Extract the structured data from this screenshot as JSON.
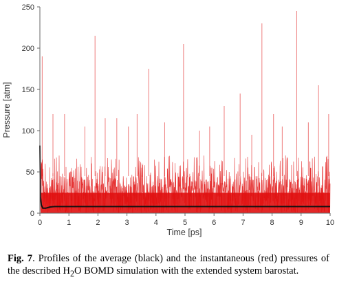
{
  "chart_data": {
    "type": "line",
    "title": "",
    "xlabel": "Time [ps]",
    "ylabel": "Pressure [atm]",
    "xlim": [
      0,
      10
    ],
    "ylim": [
      0,
      250
    ],
    "xticks": [
      "0",
      "1",
      "2",
      "3",
      "4",
      "5",
      "6",
      "7",
      "8",
      "9",
      "10"
    ],
    "yticks": [
      "0",
      "50",
      "100",
      "150",
      "200",
      "250"
    ],
    "grid": false,
    "legend": "none",
    "series": [
      {
        "color": "#e01010",
        "description_level": "instantaneous",
        "band": [
          0,
          45
        ],
        "typical_peaks": 70,
        "spikes": [
          {
            "x": 0.08,
            "y": 190
          },
          {
            "x": 0.45,
            "y": 120
          },
          {
            "x": 0.85,
            "y": 120
          },
          {
            "x": 1.55,
            "y": 105
          },
          {
            "x": 1.9,
            "y": 215
          },
          {
            "x": 2.25,
            "y": 115
          },
          {
            "x": 2.65,
            "y": 115
          },
          {
            "x": 3.05,
            "y": 105
          },
          {
            "x": 3.35,
            "y": 120
          },
          {
            "x": 3.75,
            "y": 175
          },
          {
            "x": 4.3,
            "y": 110
          },
          {
            "x": 4.95,
            "y": 205
          },
          {
            "x": 5.5,
            "y": 100
          },
          {
            "x": 5.85,
            "y": 105
          },
          {
            "x": 6.35,
            "y": 130
          },
          {
            "x": 6.9,
            "y": 145
          },
          {
            "x": 7.3,
            "y": 95
          },
          {
            "x": 7.65,
            "y": 230
          },
          {
            "x": 8.05,
            "y": 120
          },
          {
            "x": 8.35,
            "y": 105
          },
          {
            "x": 8.85,
            "y": 245
          },
          {
            "x": 9.25,
            "y": 110
          },
          {
            "x": 9.6,
            "y": 155
          },
          {
            "x": 9.95,
            "y": 120
          }
        ]
      },
      {
        "color": "#111111",
        "description_level": "average",
        "x": [
          0,
          0.02,
          0.05,
          0.1,
          0.2,
          0.35,
          0.5,
          1,
          2,
          3,
          4,
          5,
          6,
          7,
          8,
          9,
          10
        ],
        "y": [
          82,
          20,
          10,
          6,
          6,
          7.5,
          8,
          8,
          8,
          8,
          8,
          8,
          8,
          8,
          8,
          8,
          8
        ]
      }
    ]
  },
  "caption": {
    "label": "Fig. 7",
    "text_before": ". Profiles of the average (black) and the instantaneous (red) pressures of the described H",
    "subscript": "2",
    "text_after": "O BOMD simulation with the extended system barostat."
  }
}
